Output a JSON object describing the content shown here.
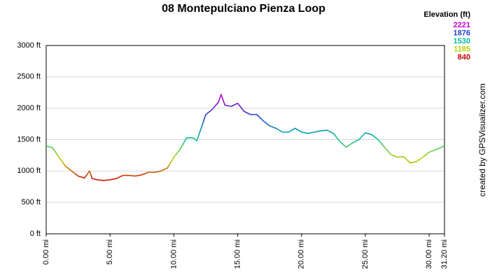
{
  "chart_data": {
    "type": "line",
    "title": "08 Montepulciano Pienza Loop",
    "legend_title": "Elevation (ft)",
    "color_scale": [
      {
        "value": 2221,
        "color": "#cc00cc"
      },
      {
        "value": 1876,
        "color": "#2040d0"
      },
      {
        "value": 1530,
        "color": "#00c0a0"
      },
      {
        "value": 1185,
        "color": "#b8d400"
      },
      {
        "value": 840,
        "color": "#cc0000"
      }
    ],
    "credit": "created by GPSVisualizer.com",
    "grid": true,
    "xlim": [
      0,
      31.2
    ],
    "ylim": [
      0,
      3000
    ],
    "xticks": [
      {
        "value": 0,
        "label": "0.00 mi"
      },
      {
        "value": 5,
        "label": "5.00 mi"
      },
      {
        "value": 10,
        "label": "10.00 mi"
      },
      {
        "value": 15,
        "label": "15.00 mi"
      },
      {
        "value": 20,
        "label": "20.00 mi"
      },
      {
        "value": 25,
        "label": "25.00 mi"
      },
      {
        "value": 30,
        "label": "30.00 mi"
      },
      {
        "value": 31.2,
        "label": "31.20 mi"
      }
    ],
    "yticks": [
      {
        "value": 0,
        "label": "0 ft"
      },
      {
        "value": 500,
        "label": "500 ft"
      },
      {
        "value": 1000,
        "label": "1000 ft"
      },
      {
        "value": 1500,
        "label": "1500 ft"
      },
      {
        "value": 2000,
        "label": "2000 ft"
      },
      {
        "value": 2500,
        "label": "2500 ft"
      },
      {
        "value": 3000,
        "label": "3000 ft"
      }
    ],
    "x": [
      0,
      0.5,
      1.0,
      1.5,
      2.0,
      2.5,
      3.0,
      3.4,
      3.6,
      4.0,
      4.5,
      5.0,
      5.5,
      6.0,
      6.5,
      7.0,
      7.5,
      8.0,
      8.5,
      9.0,
      9.5,
      10.0,
      10.5,
      11.0,
      11.5,
      11.8,
      12.0,
      12.5,
      13.0,
      13.5,
      13.7,
      14.0,
      14.5,
      15.0,
      15.5,
      16.0,
      16.5,
      17.0,
      17.5,
      18.0,
      18.5,
      19.0,
      19.5,
      20.0,
      20.5,
      21.0,
      21.5,
      22.0,
      22.5,
      23.0,
      23.5,
      24.0,
      24.5,
      25.0,
      25.5,
      26.0,
      26.5,
      27.0,
      27.5,
      28.0,
      28.5,
      29.0,
      29.5,
      30.0,
      30.5,
      31.0,
      31.2
    ],
    "values": [
      1400,
      1370,
      1220,
      1080,
      1000,
      920,
      890,
      1000,
      880,
      860,
      850,
      860,
      880,
      930,
      930,
      920,
      940,
      980,
      980,
      1000,
      1050,
      1220,
      1350,
      1530,
      1530,
      1480,
      1600,
      1900,
      1980,
      2100,
      2221,
      2050,
      2030,
      2080,
      1950,
      1900,
      1900,
      1800,
      1720,
      1680,
      1620,
      1620,
      1680,
      1620,
      1600,
      1620,
      1640,
      1650,
      1600,
      1470,
      1380,
      1450,
      1500,
      1610,
      1580,
      1500,
      1380,
      1260,
      1220,
      1230,
      1130,
      1150,
      1220,
      1300,
      1340,
      1380,
      1410
    ]
  }
}
